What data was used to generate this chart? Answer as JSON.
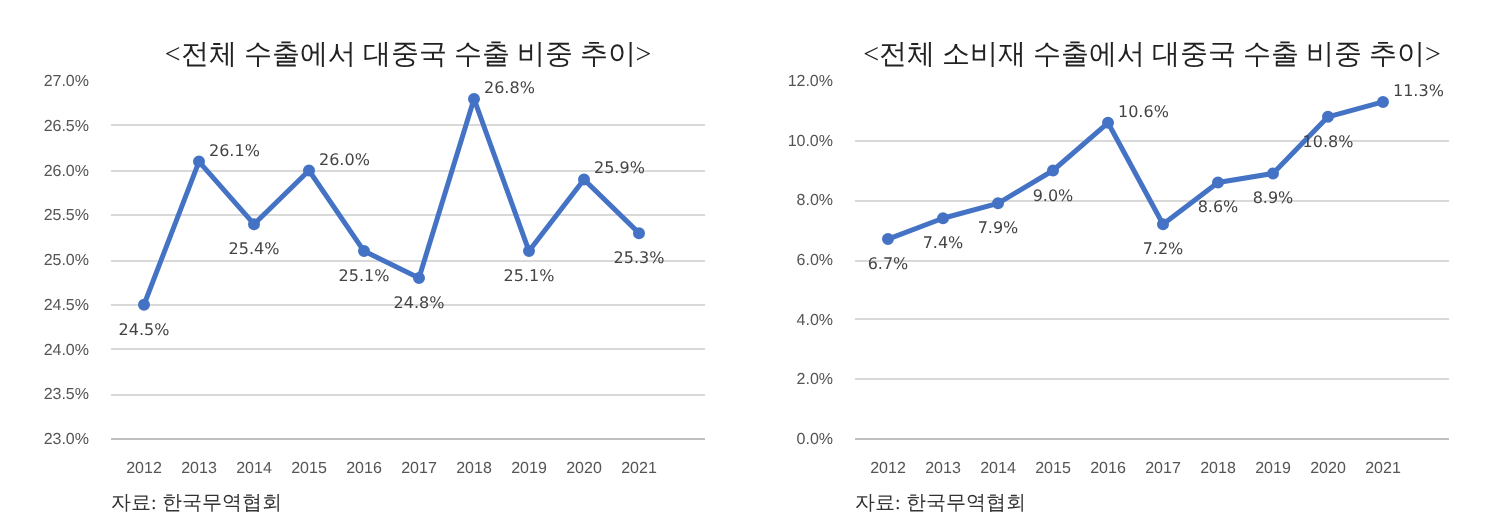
{
  "chart_data": [
    {
      "type": "line",
      "title": "<전체 수출에서 대중국 수출 비중 추이>",
      "categories": [
        "2012",
        "2013",
        "2014",
        "2015",
        "2016",
        "2017",
        "2018",
        "2019",
        "2020",
        "2021"
      ],
      "series": [
        {
          "color": "#4472c4",
          "values": [
            24.5,
            26.1,
            25.4,
            26.0,
            25.1,
            24.8,
            26.8,
            25.1,
            25.9,
            25.3
          ],
          "value_labels": [
            "24.5%",
            "26.1%",
            "25.4%",
            "26.0%",
            "25.1%",
            "24.8%",
            "26.8%",
            "25.1%",
            "25.9%",
            "25.3%"
          ]
        }
      ],
      "ylim": [
        23.0,
        27.0
      ],
      "yticks": [
        {
          "value": 23.0,
          "label": "23.0%"
        },
        {
          "value": 23.5,
          "label": "23.5%"
        },
        {
          "value": 24.0,
          "label": "24.0%"
        },
        {
          "value": 24.5,
          "label": "24.5%"
        },
        {
          "value": 25.0,
          "label": "25.0%"
        },
        {
          "value": 25.5,
          "label": "25.5%"
        },
        {
          "value": 26.0,
          "label": "26.0%"
        },
        {
          "value": 26.5,
          "label": "26.5%"
        },
        {
          "value": 27.0,
          "label": "27.0%"
        }
      ],
      "grid": "y",
      "marker": "circle",
      "line_style": "solid",
      "annotations": [
        "자료: 한국무역협회"
      ]
    },
    {
      "type": "line",
      "title": "<전체 소비재 수출에서 대중국 수출 비중 추이>",
      "categories": [
        "2012",
        "2013",
        "2014",
        "2015",
        "2016",
        "2017",
        "2018",
        "2019",
        "2020",
        "2021"
      ],
      "series": [
        {
          "color": "#4472c4",
          "values": [
            6.7,
            7.4,
            7.9,
            9.0,
            10.6,
            7.2,
            8.6,
            8.9,
            10.8,
            11.3
          ],
          "value_labels": [
            "6.7%",
            "7.4%",
            "7.9%",
            "9.0%",
            "10.6%",
            "7.2%",
            "8.6%",
            "8.9%",
            "10.8%",
            "11.3%"
          ]
        }
      ],
      "ylim": [
        0.0,
        12.0
      ],
      "yticks": [
        {
          "value": 0.0,
          "label": "0.0%"
        },
        {
          "value": 2.0,
          "label": "2.0%"
        },
        {
          "value": 4.0,
          "label": "4.0%"
        },
        {
          "value": 6.0,
          "label": "6.0%"
        },
        {
          "value": 8.0,
          "label": "8.0%"
        },
        {
          "value": 10.0,
          "label": "10.0%"
        },
        {
          "value": 12.0,
          "label": "12.0%"
        }
      ],
      "grid": "y",
      "marker": "circle",
      "line_style": "solid",
      "annotations": [
        "자료: 한국무역협회"
      ]
    }
  ]
}
